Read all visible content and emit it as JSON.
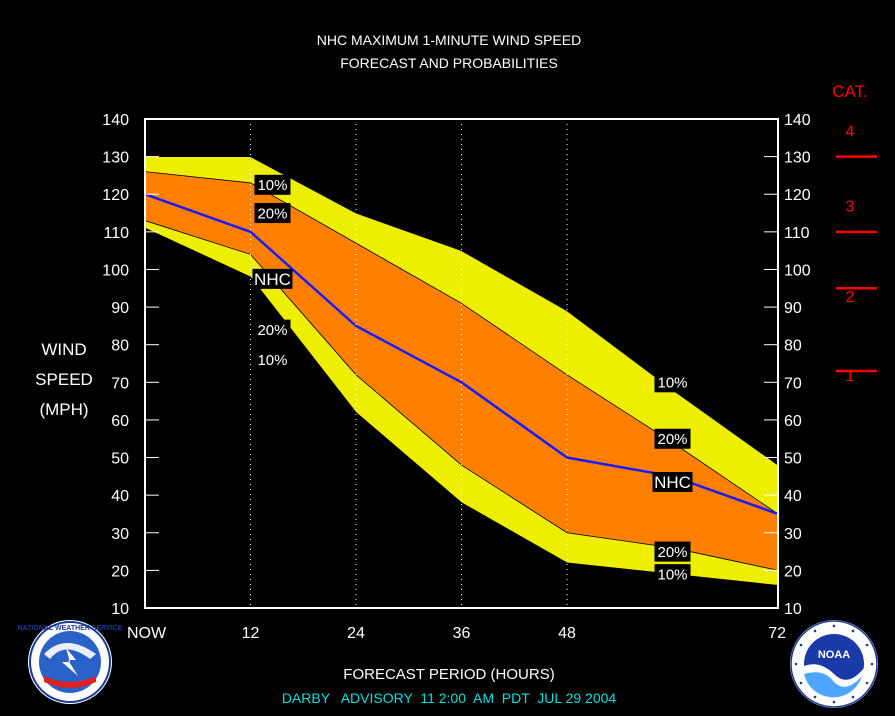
{
  "chart_data": {
    "type": "area",
    "title_line1": "NHC MAXIMUM 1-MINUTE WIND SPEED",
    "title_line2": "FORECAST AND PROBABILITIES",
    "ylabel": [
      "WIND",
      "SPEED",
      "(MPH)"
    ],
    "xlabel": "FORECAST PERIOD (HOURS)",
    "x_ticks": [
      {
        "x": 0,
        "label": "NOW"
      },
      {
        "x": 12,
        "label": "12"
      },
      {
        "x": 24,
        "label": "24"
      },
      {
        "x": 36,
        "label": "36"
      },
      {
        "x": 48,
        "label": "48"
      },
      {
        "x": 72,
        "label": "72"
      }
    ],
    "xlim": [
      0,
      72
    ],
    "ylim": [
      10,
      140
    ],
    "y_ticks": [
      10,
      20,
      30,
      40,
      50,
      60,
      70,
      80,
      90,
      100,
      110,
      120,
      130,
      140
    ],
    "vertical_grid_x": [
      12,
      24,
      36,
      48
    ],
    "x": [
      0,
      12,
      24,
      36,
      48,
      60,
      72
    ],
    "series": [
      {
        "name": "10%",
        "role": "upper",
        "color": "#eeee00",
        "values": [
          130,
          130,
          115,
          105,
          89,
          68,
          48
        ]
      },
      {
        "name": "20%",
        "role": "upper",
        "color": "#ff8000",
        "values": [
          126,
          123,
          107,
          91,
          72,
          54,
          35
        ]
      },
      {
        "name": "NHC",
        "role": "forecast",
        "color": "#1a1aff",
        "values": [
          120,
          110,
          85,
          70,
          50,
          45,
          35
        ]
      },
      {
        "name": "20%",
        "role": "lower",
        "color": "#ff8000",
        "values": [
          113,
          104,
          72,
          48,
          30,
          26,
          20
        ]
      },
      {
        "name": "10%",
        "role": "lower",
        "color": "#eeee00",
        "values": [
          111,
          98,
          62,
          38,
          22,
          19,
          16
        ]
      }
    ],
    "band_labels": [
      {
        "text": "10%",
        "x": 14.5,
        "y": 122.5
      },
      {
        "text": "20%",
        "x": 14.5,
        "y": 115
      },
      {
        "text": "NHC",
        "x": 14.5,
        "y": 97.5
      },
      {
        "text": "20%",
        "x": 14.5,
        "y": 84
      },
      {
        "text": "10%",
        "x": 14.5,
        "y": 76
      },
      {
        "text": "10%",
        "x": 60,
        "y": 70
      },
      {
        "text": "20%",
        "x": 60,
        "y": 55
      },
      {
        "text": "NHC",
        "x": 60,
        "y": 43.5
      },
      {
        "text": "20%",
        "x": 60,
        "y": 25
      },
      {
        "text": "10%",
        "x": 60,
        "y": 19
      }
    ],
    "categories": {
      "title": "CAT.",
      "color": "#ff0000",
      "labels": [
        {
          "text": "4",
          "y": 137
        },
        {
          "text": "3",
          "y": 117
        },
        {
          "text": "2",
          "y": 93
        },
        {
          "text": "1",
          "y": 72
        }
      ],
      "boundaries": [
        130,
        110,
        95,
        73
      ]
    }
  },
  "footer": {
    "advisory": "DARBY   ADVISORY  11 2:00  AM  PDT  JUL 29 2004",
    "advisory_color": "#00e0e0"
  },
  "logos": {
    "left": {
      "name": "national-weather-service-logo",
      "text": "NATIONAL WEATHER SERVICE"
    },
    "right": {
      "name": "noaa-logo",
      "text": "NOAA",
      "ring_text": "NATIONAL OCEANIC AND ATMOSPHERIC ADMINISTRATION · U.S. DEPARTMENT OF COMMERCE"
    }
  }
}
